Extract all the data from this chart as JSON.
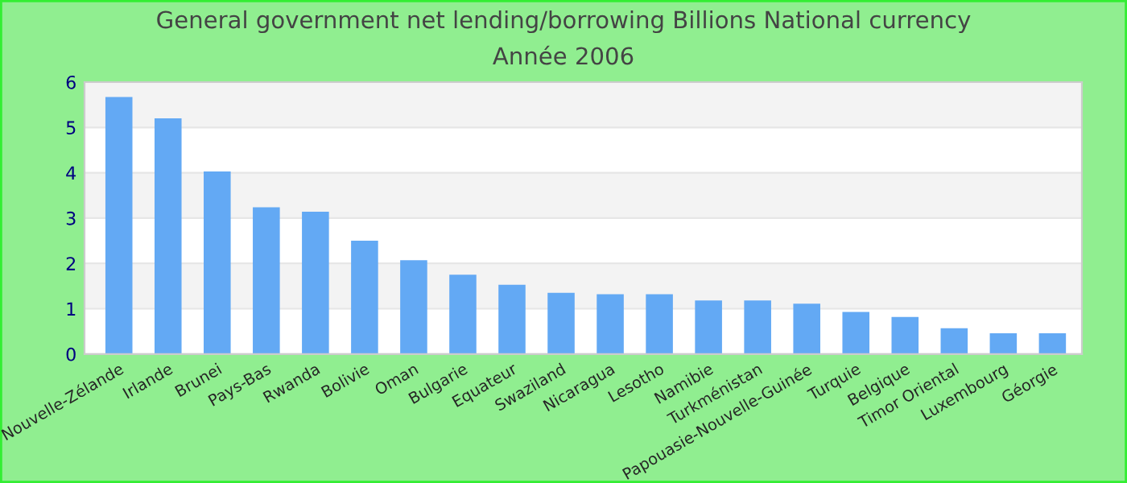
{
  "chart_data": {
    "type": "bar",
    "title": "General government net lending/borrowing Billions National currency",
    "subtitle": "Année 2006",
    "categories": [
      "Nouvelle-Zélande",
      "Irlande",
      "Brunei",
      "Pays-Bas",
      "Rwanda",
      "Bolivie",
      "Oman",
      "Bulgarie",
      "Equateur",
      "Swaziland",
      "Nicaragua",
      "Lesotho",
      "Namibie",
      "Turkménistan",
      "Papouasie-Nouvelle-Guinée",
      "Turquie",
      "Belgique",
      "Timor Oriental",
      "Luxembourg",
      "Géorgie"
    ],
    "values": [
      5.67,
      5.2,
      4.03,
      3.24,
      3.14,
      2.5,
      2.07,
      1.75,
      1.53,
      1.35,
      1.32,
      1.32,
      1.18,
      1.18,
      1.11,
      0.93,
      0.82,
      0.57,
      0.46,
      0.46
    ],
    "color": "#63a9f4",
    "ylim": [
      0,
      6
    ],
    "yticks": [
      0,
      1,
      2,
      3,
      4,
      5,
      6
    ],
    "grid": "y",
    "legend": false
  }
}
